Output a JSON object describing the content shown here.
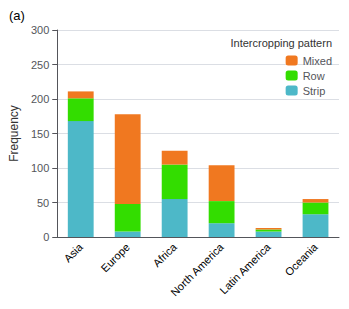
{
  "chart_data": {
    "type": "bar",
    "stacked": true,
    "title": "(a)",
    "categories": [
      "Asia",
      "Europe",
      "Africa",
      "North America",
      "Latin America",
      "Oceania"
    ],
    "series": [
      {
        "name": "Strip",
        "color": "#4db8c8",
        "values": [
          168,
          8,
          55,
          20,
          8,
          33
        ]
      },
      {
        "name": "Row",
        "color": "#33dd00",
        "values": [
          33,
          40,
          50,
          32,
          3,
          17
        ]
      },
      {
        "name": "Mixed",
        "color": "#f07820",
        "values": [
          10,
          130,
          20,
          52,
          2,
          5
        ]
      }
    ],
    "ylabel": "Frequency",
    "ylim": [
      0,
      300
    ],
    "yticks": [
      0,
      50,
      100,
      150,
      200,
      250,
      300
    ],
    "grid": true,
    "legend": "upper right",
    "legend_title": "Intercropping pattern"
  }
}
